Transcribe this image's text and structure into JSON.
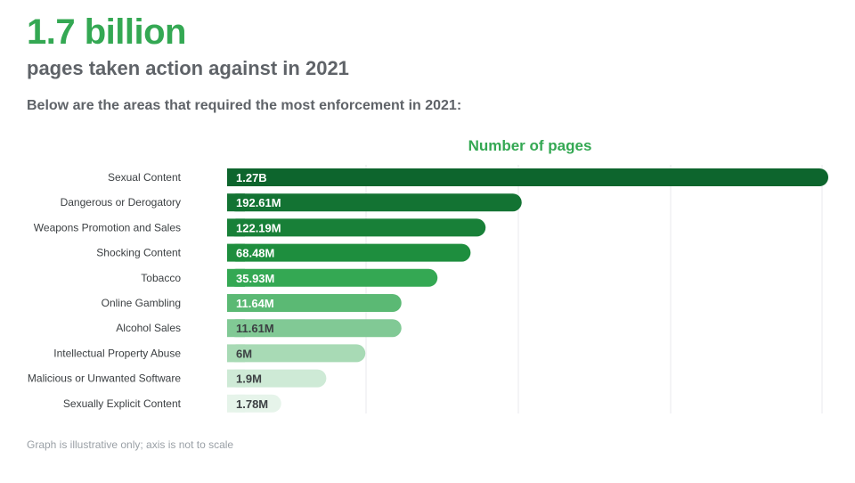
{
  "headline": "1.7 billion",
  "subheadline": "pages taken action against in 2021",
  "intro": "Below are the areas that required the most enforcement in 2021:",
  "footnote": "Graph is illustrative only; axis is not to scale",
  "chart_data": {
    "type": "bar",
    "orientation": "horizontal",
    "xlabel": "Number of pages",
    "axis_scale": "not to scale",
    "grid": true,
    "categories": [
      "Sexual Content",
      "Dangerous or Derogatory",
      "Weapons Promotion and Sales",
      "Shocking Content",
      "Tobacco",
      "Online Gambling",
      "Alcohol Sales",
      "Intellectual Property Abuse",
      "Malicious or Unwanted Software",
      "Sexually Explicit Content"
    ],
    "values": [
      1270000000,
      192610000,
      122190000,
      68480000,
      35930000,
      11640000,
      11610000,
      6000000,
      1900000,
      1780000
    ],
    "value_labels": [
      "1.27B",
      "192.61M",
      "122.19M",
      "68.48M",
      "35.93M",
      "11.64M",
      "11.61M",
      "6M",
      "1.9M",
      "1.78M"
    ],
    "bar_length_fraction": [
      1.0,
      0.49,
      0.43,
      0.405,
      0.35,
      0.29,
      0.29,
      0.23,
      0.165,
      0.09
    ],
    "bar_colors": [
      "#0d652d",
      "#137333",
      "#188038",
      "#1e8e3e",
      "#34a853",
      "#5bb974",
      "#81c995",
      "#a8dab5",
      "#ceead6",
      "#e6f4ea"
    ],
    "label_colors": [
      "#ffffff",
      "#ffffff",
      "#ffffff",
      "#ffffff",
      "#ffffff",
      "#ffffff",
      "#3c4043",
      "#3c4043",
      "#3c4043",
      "#3c4043"
    ]
  }
}
